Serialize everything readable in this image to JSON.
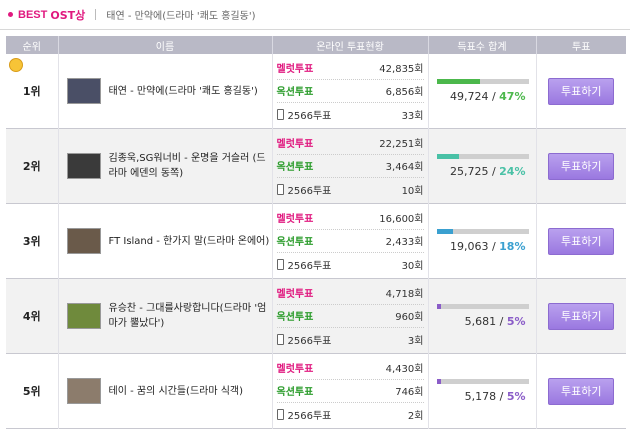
{
  "header": {
    "best": "BEST",
    "ost": "OST상",
    "subtitle": "태연 - 만약에(드라마 '쾌도 홍길동')"
  },
  "columns": [
    "순위",
    "이름",
    "온라인 투표현황",
    "득표수 합계",
    "투표"
  ],
  "vote_labels": {
    "melon": "멜럿투표",
    "auction": "옥션투표",
    "phone": "2566투표"
  },
  "vote_button_label": "투표하기",
  "count_suffix": "회",
  "colors": {
    "melon": "#e0197f",
    "auction": "#2c9c2c",
    "header_bg": "#b9b9c6",
    "button": "#9a78e0"
  },
  "rows": [
    {
      "rank": "1위",
      "name": "태연 - 만약에(드라마 '쾌도 홍길동')",
      "melon": "42,835",
      "auction": "6,856",
      "phone": "33",
      "total": "49,724",
      "percent": "47%",
      "percent_value": 47,
      "bar_color": "#4cb84c",
      "thumb_color": "#4a4f66",
      "has_crown": true
    },
    {
      "rank": "2위",
      "name": "김종욱,SG워너비 - 운명을 거슬러 (드라마 에덴의 동쪽)",
      "melon": "22,251",
      "auction": "3,464",
      "phone": "10",
      "total": "25,725",
      "percent": "24%",
      "percent_value": 24,
      "bar_color": "#49c1a6",
      "thumb_color": "#3a3a3a",
      "has_crown": false
    },
    {
      "rank": "3위",
      "name": "FT Island - 한가지 말(드라마 온에어)",
      "melon": "16,600",
      "auction": "2,433",
      "phone": "30",
      "total": "19,063",
      "percent": "18%",
      "percent_value": 18,
      "bar_color": "#3aa0d0",
      "thumb_color": "#6a5a4a",
      "has_crown": false
    },
    {
      "rank": "4위",
      "name": "유승찬 - 그대를사랑합니다(드라마 '엄마가 뿔났다')",
      "melon": "4,718",
      "auction": "960",
      "phone": "3",
      "total": "5,681",
      "percent": "5%",
      "percent_value": 5,
      "bar_color": "#8a5cc8",
      "thumb_color": "#6f8a3c",
      "has_crown": false
    },
    {
      "rank": "5위",
      "name": "테이 - 꿈의 시간들(드라마 식객)",
      "melon": "4,430",
      "auction": "746",
      "phone": "2",
      "total": "5,178",
      "percent": "5%",
      "percent_value": 5,
      "bar_color": "#8a5cc8",
      "thumb_color": "#8c7c6c",
      "has_crown": false
    }
  ]
}
